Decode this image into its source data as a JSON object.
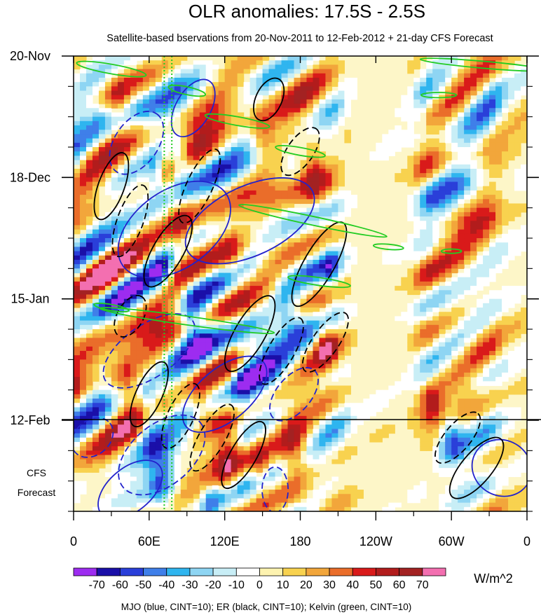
{
  "chart_data": {
    "type": "heatmap",
    "title": "OLR anomalies: 17.5S - 2.5S",
    "subtitle": "Satellite-based bservations from 20-Nov-2011 to 12-Feb-2012 + 21-day CFS Forecast",
    "x_ticks": [
      "0",
      "60E",
      "120E",
      "180",
      "120W",
      "60W",
      "0"
    ],
    "x_tick_values": [
      0,
      60,
      120,
      180,
      240,
      300,
      360
    ],
    "xlim": [
      0,
      360
    ],
    "y_ticks": [
      "20-Nov",
      "18-Dec",
      "15-Jan",
      "12-Feb"
    ],
    "y_tick_days": [
      0,
      28,
      56,
      84
    ],
    "ylim_days": [
      0,
      105
    ],
    "forecast_label": [
      "CFS",
      "Forecast"
    ],
    "forecast_start_day": 84,
    "colorbar": {
      "levels": [
        "-70",
        "-60",
        "-50",
        "-40",
        "-30",
        "-20",
        "-10",
        "0",
        "10",
        "20",
        "30",
        "40",
        "50",
        "60",
        "70"
      ],
      "colors": [
        "#9d2cf0",
        "#1a0fa8",
        "#2a3fd9",
        "#3f7fe9",
        "#2fb5ef",
        "#8ed5f3",
        "#c8eef6",
        "#ffffff",
        "#fdf3b0",
        "#f8d24f",
        "#f2a63b",
        "#ea6d2a",
        "#d91a1a",
        "#b21c1c",
        "#a32222",
        "#f36fb0"
      ],
      "units": "W/m^2"
    },
    "contour_legend": "MJO (blue, CINT=10); ER (black, CINT=10); Kelvin (green, CINT=10)",
    "series": [
      {
        "name": "MJO",
        "color": "#2222cc",
        "cint": 10
      },
      {
        "name": "ER",
        "color": "#000000",
        "cint": 10
      },
      {
        "name": "Kelvin",
        "color": "#22cc22",
        "cint": 10
      }
    ]
  }
}
